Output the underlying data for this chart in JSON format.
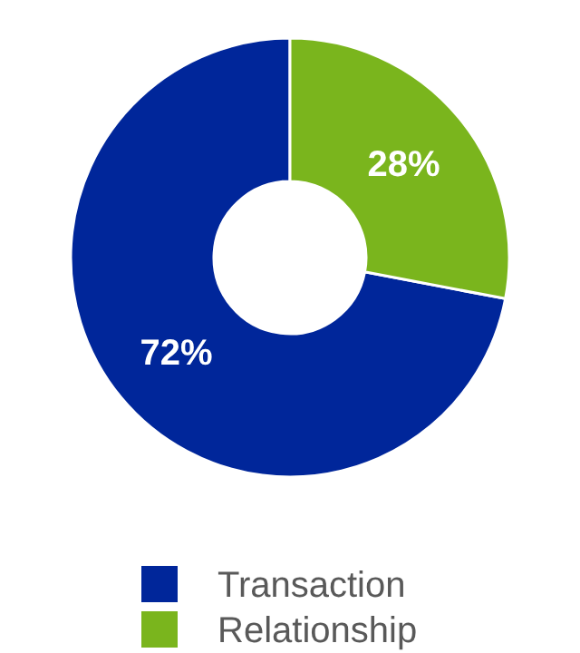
{
  "chart_data": {
    "type": "donut",
    "categories": [
      "Transaction",
      "Relationship"
    ],
    "values": [
      72,
      28
    ],
    "colors": [
      "#00269a",
      "#7ab51d"
    ],
    "value_labels": [
      "72%",
      "28%"
    ],
    "legend": "bottom"
  }
}
